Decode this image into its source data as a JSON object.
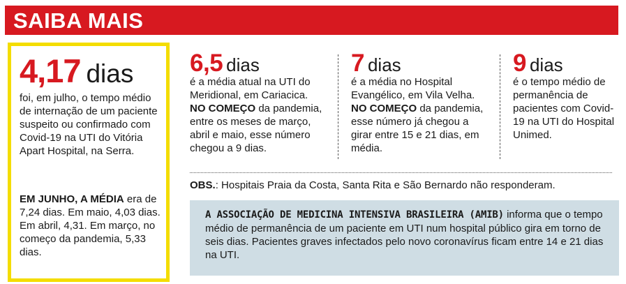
{
  "banner": {
    "title": "SAIBA MAIS"
  },
  "main": {
    "stat": {
      "number": "4,17",
      "unit": "dias"
    },
    "description": "foi, em julho, o tempo médio de internação de um paciente suspeito ou confirmado com Covid-19 na UTI do Vitória Apart Hospital, na Serra.",
    "note_lead": "EM JUNHO, A MÉDIA",
    "note_rest": " era de 7,24 dias. Em maio, 4,03 dias. Em abril, 4,31. Em março, no começo da pandemia, 5,33 dias."
  },
  "columns": [
    {
      "number": "6,5",
      "unit": "dias",
      "description": "é a média atual na UTI do Meridional, em Cariacica.",
      "lead": "NO COMEÇO",
      "rest": " da pandemia, entre os meses de março, abril e maio, esse número chegou a 9 dias."
    },
    {
      "number": "7",
      "unit": "dias",
      "description": "é a média no Hospital Evangélico, em Vila Velha.",
      "lead": "NO COMEÇO",
      "rest": " da pandemia, esse número já chegou a girar entre 15 e 21 dias, em média."
    },
    {
      "number": "9",
      "unit": "dias",
      "description": "é o tempo médio de permanência de pacientes com Covid-19 na UTI do Hospital Unimed.",
      "lead": "",
      "rest": ""
    }
  ],
  "obs": {
    "label": "OBS.",
    "text": ": Hospitais Praia da Costa, Santa Rita e São Bernardo não responderam."
  },
  "info": {
    "heading": "A ASSOCIAÇÃO DE MEDICINA INTENSIVA BRASILEIRA (AMIB)",
    "text": " informa que o tempo médio de permanência de um paciente em UTI num hospital público gira em torno de seis dias. Pacientes graves infectados pelo novo coronavírus ficam entre 14 e 21 dias na UTI."
  },
  "colors": {
    "accent_red": "#d71920",
    "highlight_yellow": "#f4dd00",
    "info_bg": "#cfdde4"
  }
}
